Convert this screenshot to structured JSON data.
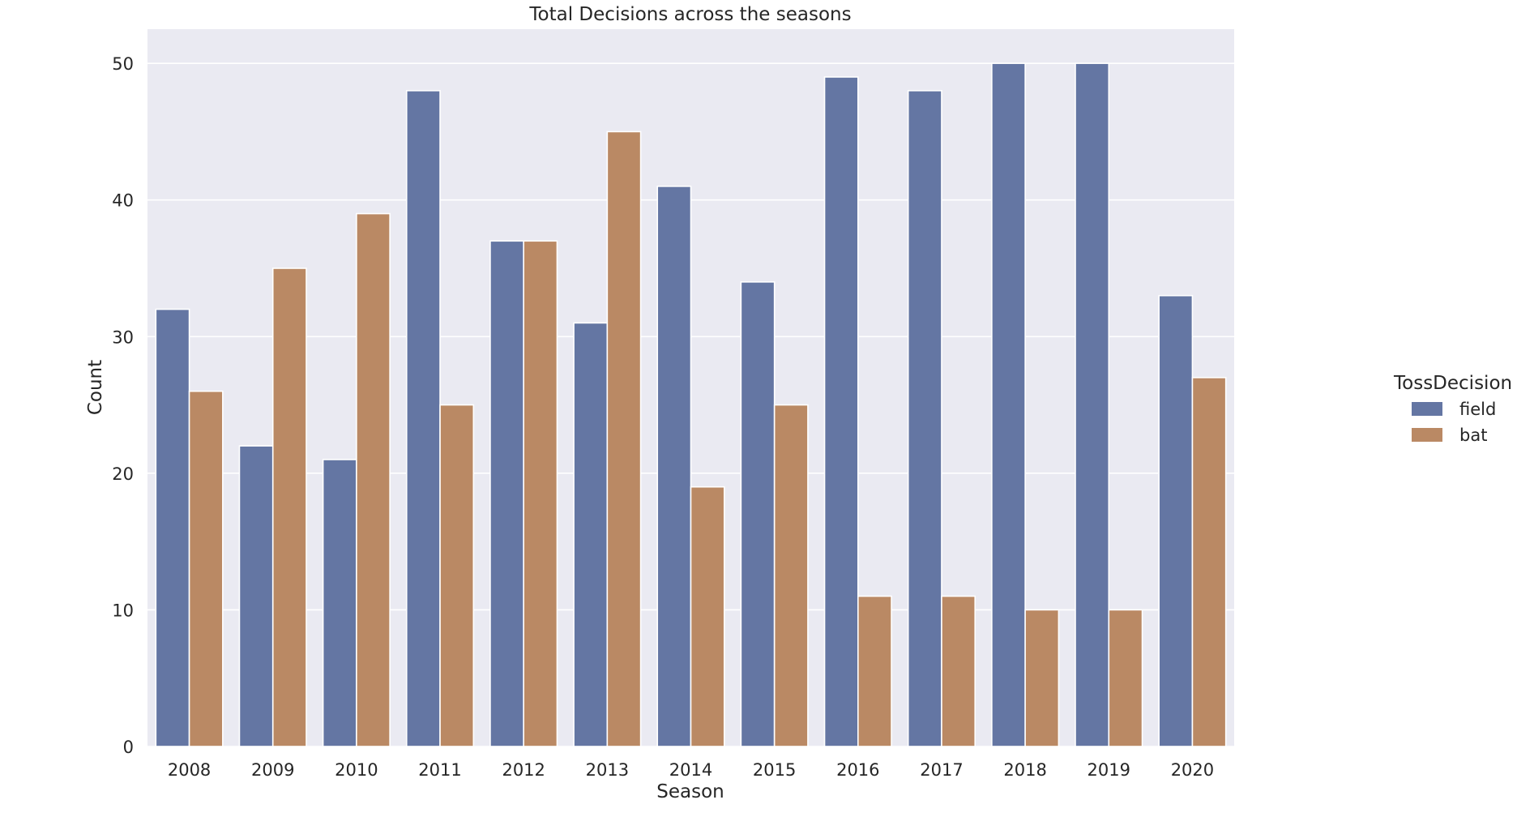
{
  "chart_data": {
    "type": "bar",
    "title": "Total Decisions across the seasons",
    "xlabel": "Season",
    "ylabel": "Count",
    "categories": [
      "2008",
      "2009",
      "2010",
      "2011",
      "2012",
      "2013",
      "2014",
      "2015",
      "2016",
      "2017",
      "2018",
      "2019",
      "2020"
    ],
    "series": [
      {
        "name": "field",
        "color": "#6476a3",
        "values": [
          32,
          22,
          21,
          48,
          37,
          31,
          41,
          34,
          49,
          48,
          50,
          50,
          33
        ]
      },
      {
        "name": "bat",
        "color": "#ba8964",
        "values": [
          26,
          35,
          39,
          25,
          37,
          45,
          19,
          25,
          11,
          11,
          10,
          10,
          27
        ]
      }
    ],
    "ylim": [
      0,
      52.5
    ],
    "yticks": [
      0,
      10,
      20,
      30,
      40,
      50
    ],
    "grid": true,
    "legend": {
      "title": "TossDecision",
      "position": "right"
    },
    "background": "#eaeaf2"
  }
}
